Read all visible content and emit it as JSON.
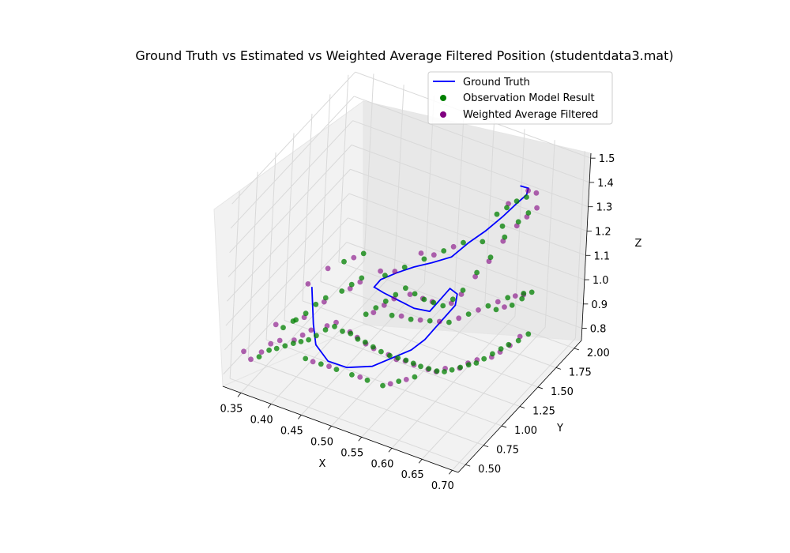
{
  "chart_data": {
    "type": "scatter",
    "title": "Ground Truth vs Estimated vs Weighted Average Filtered Position (studentdata3.mat)",
    "xlabel": "X",
    "ylabel": "Y",
    "zlabel": "Z",
    "xlim": [
      0.32,
      0.71
    ],
    "ylim": [
      0.4,
      2.1
    ],
    "zlim": [
      0.75,
      1.52
    ],
    "x_ticks": [
      "0.35",
      "0.40",
      "0.45",
      "0.50",
      "0.55",
      "0.60",
      "0.65",
      "0.70"
    ],
    "y_ticks": [
      "0.50",
      "0.75",
      "1.00",
      "1.25",
      "1.50",
      "1.75",
      "2.00"
    ],
    "z_ticks": [
      "0.8",
      "0.9",
      "1.0",
      "1.1",
      "1.2",
      "1.3",
      "1.4",
      "1.5"
    ],
    "grid": true,
    "legend_position": "top-right",
    "colors": {
      "ground_truth": "#0000ff",
      "observation": "#008000",
      "filtered": "#800080",
      "pane": "#f2f2f2",
      "grid": "#d9d9d9"
    },
    "series": [
      {
        "name": "Ground Truth",
        "kind": "line",
        "points": [
          [
            0.44,
            0.55,
            1.22
          ],
          [
            0.44,
            0.6,
            1.05
          ],
          [
            0.44,
            0.65,
            0.95
          ],
          [
            0.45,
            0.75,
            0.86
          ],
          [
            0.47,
            0.85,
            0.82
          ],
          [
            0.5,
            0.95,
            0.82
          ],
          [
            0.52,
            1.05,
            0.84
          ],
          [
            0.54,
            1.15,
            0.86
          ],
          [
            0.55,
            1.25,
            0.88
          ],
          [
            0.56,
            1.3,
            0.92
          ],
          [
            0.57,
            1.35,
            0.96
          ],
          [
            0.58,
            1.4,
            1.0
          ],
          [
            0.58,
            1.42,
            1.04
          ],
          [
            0.57,
            1.4,
            1.06
          ],
          [
            0.56,
            1.36,
            1.02
          ],
          [
            0.55,
            1.3,
            0.98
          ],
          [
            0.53,
            1.25,
            0.99
          ],
          [
            0.51,
            1.2,
            1.02
          ],
          [
            0.49,
            1.15,
            1.05
          ],
          [
            0.48,
            1.1,
            1.08
          ],
          [
            0.49,
            1.1,
            1.12
          ],
          [
            0.51,
            1.15,
            1.15
          ],
          [
            0.53,
            1.22,
            1.17
          ],
          [
            0.55,
            1.3,
            1.18
          ],
          [
            0.57,
            1.4,
            1.19
          ],
          [
            0.58,
            1.55,
            1.21
          ],
          [
            0.59,
            1.7,
            1.22
          ],
          [
            0.6,
            1.85,
            1.24
          ],
          [
            0.61,
            1.95,
            1.27
          ],
          [
            0.62,
            2.0,
            1.3
          ],
          [
            0.62,
            2.02,
            1.32
          ],
          [
            0.61,
            1.99,
            1.33
          ]
        ]
      },
      {
        "name": "Observation Model Result",
        "kind": "scatter",
        "points": [
          [
            0.36,
            0.55,
            0.86
          ],
          [
            0.37,
            0.6,
            0.88
          ],
          [
            0.38,
            0.62,
            0.89
          ],
          [
            0.39,
            0.65,
            0.9
          ],
          [
            0.4,
            0.68,
            0.91
          ],
          [
            0.41,
            0.7,
            0.92
          ],
          [
            0.42,
            0.72,
            0.93
          ],
          [
            0.43,
            0.74,
            0.95
          ],
          [
            0.44,
            0.78,
            0.97
          ],
          [
            0.45,
            0.82,
            0.98
          ],
          [
            0.46,
            0.85,
            0.96
          ],
          [
            0.47,
            0.88,
            0.95
          ],
          [
            0.48,
            0.9,
            0.93
          ],
          [
            0.49,
            0.92,
            0.92
          ],
          [
            0.5,
            0.95,
            0.9
          ],
          [
            0.51,
            0.98,
            0.88
          ],
          [
            0.52,
            1.02,
            0.86
          ],
          [
            0.53,
            1.05,
            0.85
          ],
          [
            0.54,
            1.08,
            0.84
          ],
          [
            0.55,
            1.1,
            0.83
          ],
          [
            0.56,
            1.12,
            0.82
          ],
          [
            0.57,
            1.15,
            0.81
          ],
          [
            0.58,
            1.18,
            0.8
          ],
          [
            0.59,
            1.2,
            0.8
          ],
          [
            0.6,
            1.22,
            0.81
          ],
          [
            0.61,
            1.25,
            0.82
          ],
          [
            0.62,
            1.28,
            0.83
          ],
          [
            0.63,
            1.3,
            0.84
          ],
          [
            0.64,
            1.32,
            0.86
          ],
          [
            0.65,
            1.35,
            0.88
          ],
          [
            0.66,
            1.38,
            0.9
          ],
          [
            0.67,
            1.4,
            0.92
          ],
          [
            0.68,
            1.45,
            0.93
          ],
          [
            0.69,
            1.5,
            0.95
          ],
          [
            0.48,
            1.0,
            1.0
          ],
          [
            0.49,
            1.05,
            1.02
          ],
          [
            0.5,
            1.1,
            1.04
          ],
          [
            0.51,
            1.15,
            1.06
          ],
          [
            0.52,
            1.2,
            1.08
          ],
          [
            0.53,
            1.25,
            1.05
          ],
          [
            0.54,
            1.3,
            1.02
          ],
          [
            0.55,
            1.35,
            1.0
          ],
          [
            0.56,
            1.4,
            0.98
          ],
          [
            0.57,
            1.45,
            1.0
          ],
          [
            0.58,
            1.5,
            1.03
          ],
          [
            0.59,
            1.6,
            1.08
          ],
          [
            0.6,
            1.7,
            1.12
          ],
          [
            0.61,
            1.8,
            1.18
          ],
          [
            0.62,
            1.9,
            1.22
          ],
          [
            0.63,
            1.95,
            1.25
          ],
          [
            0.6,
            1.85,
            1.2
          ],
          [
            0.58,
            1.75,
            1.15
          ],
          [
            0.45,
            0.9,
            1.1
          ],
          [
            0.46,
            0.95,
            1.12
          ],
          [
            0.47,
            1.0,
            1.14
          ],
          [
            0.42,
            0.8,
            1.05
          ],
          [
            0.43,
            0.85,
            1.07
          ],
          [
            0.4,
            0.7,
            1.0
          ],
          [
            0.41,
            0.75,
            1.02
          ],
          [
            0.5,
            1.2,
            0.95
          ],
          [
            0.52,
            1.3,
            0.92
          ],
          [
            0.54,
            1.4,
            0.9
          ],
          [
            0.56,
            1.5,
            0.88
          ],
          [
            0.58,
            1.6,
            0.9
          ],
          [
            0.6,
            1.7,
            0.92
          ],
          [
            0.62,
            1.8,
            0.94
          ],
          [
            0.64,
            1.85,
            0.96
          ],
          [
            0.55,
            0.9,
            0.82
          ],
          [
            0.57,
            0.95,
            0.84
          ],
          [
            0.53,
            0.85,
            0.8
          ],
          [
            0.51,
            0.8,
            0.82
          ],
          [
            0.49,
            0.75,
            0.84
          ],
          [
            0.47,
            0.7,
            0.86
          ],
          [
            0.45,
            0.65,
            0.88
          ],
          [
            0.43,
            0.6,
            0.9
          ],
          [
            0.65,
            1.6,
            1.0
          ],
          [
            0.66,
            1.65,
            1.02
          ],
          [
            0.67,
            1.7,
            1.04
          ],
          [
            0.63,
            1.55,
            0.98
          ],
          [
            0.5,
            1.35,
            1.1
          ],
          [
            0.52,
            1.45,
            1.12
          ],
          [
            0.54,
            1.55,
            1.14
          ],
          [
            0.48,
            1.25,
            1.08
          ],
          [
            0.56,
            1.65,
            1.16
          ],
          [
            0.44,
            1.0,
            1.18
          ],
          [
            0.46,
            1.1,
            1.2
          ],
          [
            0.38,
            0.7,
            0.95
          ],
          [
            0.39,
            0.75,
            0.97
          ],
          [
            0.61,
            1.95,
            1.28
          ],
          [
            0.62,
            2.0,
            1.29
          ],
          [
            0.6,
            1.9,
            1.26
          ],
          [
            0.59,
            1.85,
            1.24
          ]
        ]
      },
      {
        "name": "Weighted Average Filtered",
        "kind": "scatter",
        "points": [
          [
            0.35,
            0.52,
            0.85
          ],
          [
            0.36,
            0.58,
            0.87
          ],
          [
            0.37,
            0.62,
            0.9
          ],
          [
            0.38,
            0.66,
            0.91
          ],
          [
            0.4,
            0.69,
            0.92
          ],
          [
            0.41,
            0.72,
            0.94
          ],
          [
            0.42,
            0.75,
            0.96
          ],
          [
            0.44,
            0.8,
            0.98
          ],
          [
            0.45,
            0.84,
            0.99
          ],
          [
            0.47,
            0.87,
            0.96
          ],
          [
            0.48,
            0.89,
            0.94
          ],
          [
            0.49,
            0.93,
            0.91
          ],
          [
            0.5,
            0.96,
            0.89
          ],
          [
            0.52,
            1.0,
            0.87
          ],
          [
            0.53,
            1.03,
            0.85
          ],
          [
            0.54,
            1.07,
            0.84
          ],
          [
            0.55,
            1.11,
            0.82
          ],
          [
            0.57,
            1.14,
            0.81
          ],
          [
            0.58,
            1.17,
            0.8
          ],
          [
            0.59,
            1.21,
            0.81
          ],
          [
            0.61,
            1.24,
            0.82
          ],
          [
            0.62,
            1.27,
            0.84
          ],
          [
            0.63,
            1.31,
            0.85
          ],
          [
            0.65,
            1.34,
            0.87
          ],
          [
            0.66,
            1.37,
            0.89
          ],
          [
            0.67,
            1.42,
            0.91
          ],
          [
            0.68,
            1.47,
            0.94
          ],
          [
            0.49,
            1.02,
            1.01
          ],
          [
            0.5,
            1.08,
            1.03
          ],
          [
            0.51,
            1.13,
            1.05
          ],
          [
            0.53,
            1.18,
            1.07
          ],
          [
            0.54,
            1.28,
            1.03
          ],
          [
            0.55,
            1.33,
            1.01
          ],
          [
            0.57,
            1.43,
            0.99
          ],
          [
            0.58,
            1.48,
            1.02
          ],
          [
            0.59,
            1.58,
            1.07
          ],
          [
            0.6,
            1.68,
            1.11
          ],
          [
            0.61,
            1.78,
            1.17
          ],
          [
            0.62,
            1.88,
            1.21
          ],
          [
            0.63,
            1.93,
            1.24
          ],
          [
            0.64,
            1.98,
            1.27
          ],
          [
            0.46,
            0.93,
            1.11
          ],
          [
            0.47,
            0.98,
            1.13
          ],
          [
            0.43,
            0.83,
            1.06
          ],
          [
            0.41,
            0.73,
            1.01
          ],
          [
            0.51,
            1.25,
            0.94
          ],
          [
            0.53,
            1.35,
            0.91
          ],
          [
            0.55,
            1.45,
            0.89
          ],
          [
            0.57,
            1.55,
            0.89
          ],
          [
            0.59,
            1.65,
            0.91
          ],
          [
            0.61,
            1.75,
            0.93
          ],
          [
            0.63,
            1.82,
            0.95
          ],
          [
            0.56,
            0.92,
            0.83
          ],
          [
            0.54,
            0.87,
            0.81
          ],
          [
            0.5,
            0.78,
            0.83
          ],
          [
            0.46,
            0.68,
            0.87
          ],
          [
            0.44,
            0.62,
            0.89
          ],
          [
            0.64,
            1.58,
            0.99
          ],
          [
            0.66,
            1.67,
            1.03
          ],
          [
            0.49,
            1.3,
            1.09
          ],
          [
            0.53,
            1.5,
            1.13
          ],
          [
            0.55,
            1.6,
            1.15
          ],
          [
            0.45,
            1.05,
            1.19
          ],
          [
            0.42,
            0.95,
            1.15
          ],
          [
            0.4,
            0.85,
            1.1
          ],
          [
            0.34,
            0.5,
            0.88
          ],
          [
            0.37,
            0.68,
            0.96
          ],
          [
            0.62,
            2.02,
            1.31
          ],
          [
            0.6,
            1.92,
            1.27
          ],
          [
            0.63,
            2.05,
            1.3
          ],
          [
            0.52,
            1.4,
            1.16
          ],
          [
            0.48,
            1.18,
            1.12
          ]
        ]
      }
    ]
  }
}
